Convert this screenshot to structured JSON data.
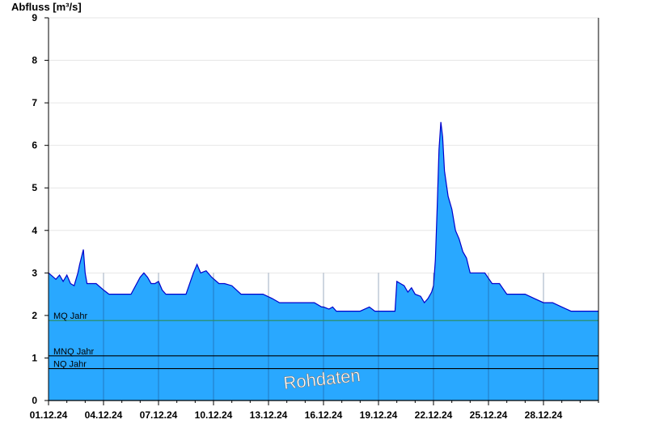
{
  "chart_data": {
    "type": "area",
    "ylabel": "Abfluss [m³/s]",
    "ylim": [
      0,
      9
    ],
    "yticks": [
      "0",
      "1",
      "2",
      "3",
      "4",
      "5",
      "6",
      "7",
      "8",
      "9"
    ],
    "xticks": [
      "01.12.24",
      "04.12.24",
      "07.12.24",
      "10.12.24",
      "13.12.24",
      "16.12.24",
      "19.12.24",
      "22.12.24",
      "25.12.24",
      "28.12.24"
    ],
    "xlim_days": [
      1,
      31
    ],
    "watermark": "Rohdaten",
    "reference_lines": [
      {
        "label": "MQ Jahr",
        "value": 1.88,
        "color": "#2e8b57"
      },
      {
        "label": "MNQ Jahr",
        "value": 1.05,
        "color": "#000000"
      },
      {
        "label": "NQ Jahr",
        "value": 0.75,
        "color": "#000000"
      }
    ],
    "series": [
      {
        "color": "#29a8ff",
        "line_color": "#0000cc",
        "x": [
          1.0,
          1.4,
          1.6,
          1.8,
          2.0,
          2.2,
          2.4,
          2.6,
          2.7,
          2.9,
          3.0,
          3.1,
          3.2,
          3.3,
          3.4,
          3.6,
          4.0,
          4.3,
          4.6,
          5.0,
          5.5,
          6.0,
          6.2,
          6.4,
          6.6,
          6.8,
          7.0,
          7.2,
          7.4,
          7.6,
          8.0,
          8.5,
          8.9,
          9.1,
          9.3,
          9.6,
          9.9,
          10.3,
          10.6,
          11.0,
          11.5,
          12.0,
          12.4,
          12.7,
          13.2,
          13.6,
          14.0,
          14.5,
          15.0,
          15.5,
          15.9,
          16.0,
          16.3,
          16.5,
          16.7,
          17.0,
          17.5,
          18.0,
          18.5,
          18.8,
          19.0,
          19.2,
          19.6,
          19.9,
          20.0,
          20.2,
          20.4,
          20.6,
          20.8,
          21.0,
          21.3,
          21.5,
          21.7,
          21.9,
          22.0,
          22.1,
          22.2,
          22.3,
          22.4,
          22.5,
          22.6,
          22.8,
          23.0,
          23.2,
          23.4,
          23.6,
          23.8,
          24.0,
          24.4,
          24.8,
          25.2,
          25.6,
          26.0,
          26.5,
          27.0,
          27.5,
          28.0,
          28.5,
          29.0,
          29.5,
          30.0,
          30.5,
          31.0
        ],
        "y": [
          3.0,
          2.85,
          2.95,
          2.8,
          2.95,
          2.75,
          2.7,
          3.0,
          3.2,
          3.55,
          3.0,
          2.75,
          2.75,
          2.75,
          2.75,
          2.75,
          2.6,
          2.5,
          2.5,
          2.5,
          2.5,
          2.9,
          3.0,
          2.9,
          2.75,
          2.75,
          2.8,
          2.6,
          2.5,
          2.5,
          2.5,
          2.5,
          3.0,
          3.2,
          3.0,
          3.05,
          2.9,
          2.75,
          2.75,
          2.7,
          2.5,
          2.5,
          2.5,
          2.5,
          2.4,
          2.3,
          2.3,
          2.3,
          2.3,
          2.3,
          2.2,
          2.2,
          2.15,
          2.2,
          2.1,
          2.1,
          2.1,
          2.1,
          2.2,
          2.1,
          2.1,
          2.1,
          2.1,
          2.1,
          2.8,
          2.75,
          2.7,
          2.55,
          2.65,
          2.5,
          2.45,
          2.3,
          2.4,
          2.55,
          2.7,
          3.3,
          4.5,
          5.9,
          6.55,
          6.2,
          5.4,
          4.8,
          4.5,
          4.0,
          3.8,
          3.5,
          3.35,
          3.0,
          3.0,
          3.0,
          2.75,
          2.75,
          2.5,
          2.5,
          2.5,
          2.4,
          2.3,
          2.3,
          2.2,
          2.1,
          2.1,
          2.1,
          2.1
        ]
      }
    ]
  }
}
